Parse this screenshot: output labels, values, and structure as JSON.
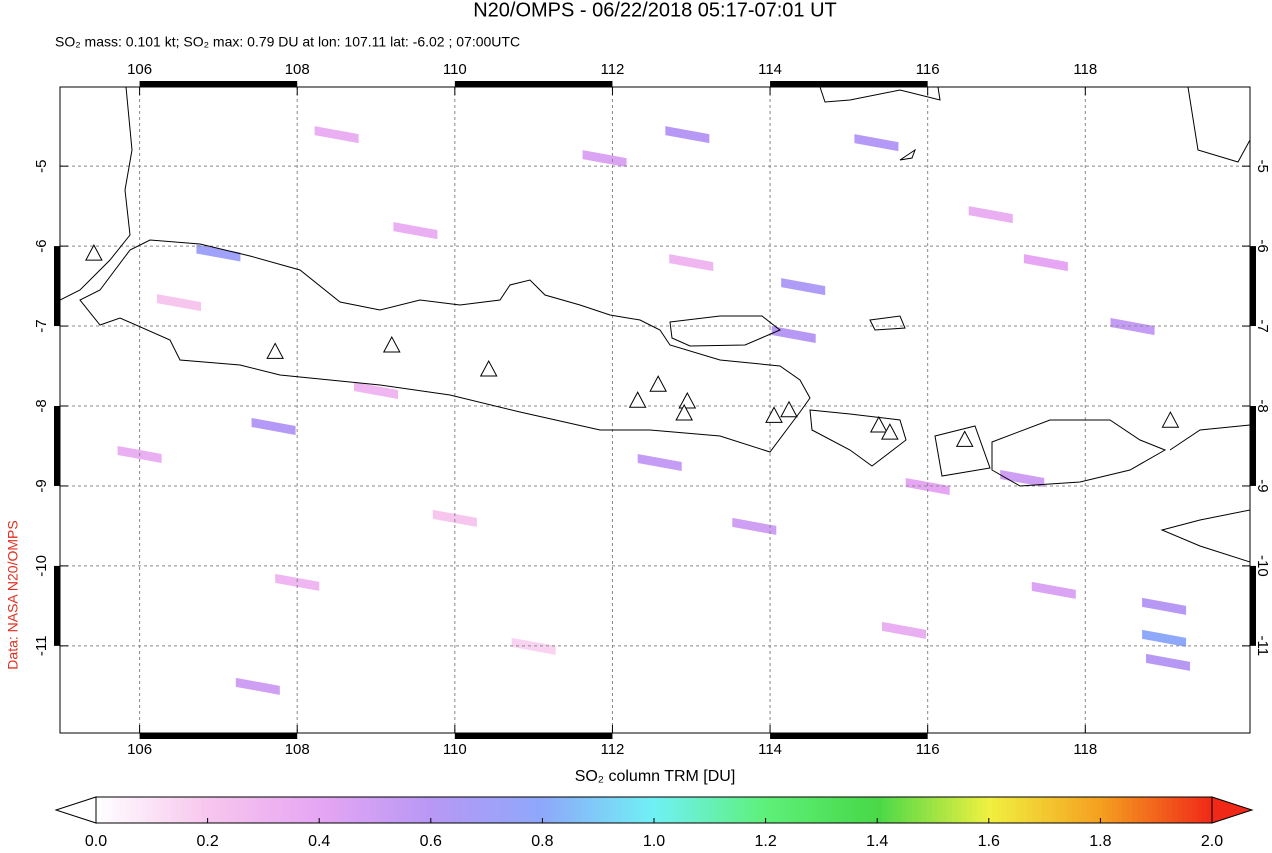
{
  "chart_data": {
    "type": "map",
    "title": "N20/OMPS - 06/22/2018 05:17-07:01 UT",
    "subtitle": "SO₂ mass: 0.101 kt; SO₂ max: 0.79 DU at lon: 107.11 lat: -6.02 ; 07:00UTC",
    "source": "Data: NASA N20/OMPS",
    "xlim": [
      104.99,
      120.09
    ],
    "ylim": [
      -12.09,
      -4.01
    ],
    "xticks": [
      106,
      108,
      110,
      112,
      114,
      116,
      118
    ],
    "yticks": [
      -5,
      -6,
      -7,
      -8,
      -9,
      -10,
      -11
    ],
    "grid": true,
    "pixels": {
      "lon": [
        107.0,
        114.42,
        107.7,
        112.6,
        115.35,
        119.0,
        119.0,
        119.05,
        112.95,
        111.9,
        108.5,
        109.5,
        114.3,
        107.5,
        113.8,
        116.0,
        117.6,
        118.6,
        106.0,
        110.0,
        106.5,
        109.0,
        113.0,
        116.8,
        117.5,
        115.7,
        108.0,
        111.0,
        117.2
      ],
      "lat": [
        -6.08,
        -6.5,
        -8.25,
        -8.7,
        -4.7,
        -10.5,
        -10.9,
        -11.2,
        -4.6,
        -4.9,
        -4.6,
        -5.8,
        -7.1,
        -11.5,
        -9.5,
        -9.0,
        -10.3,
        -7.0,
        -8.6,
        -9.4,
        -6.7,
        -7.8,
        -6.2,
        -5.6,
        -6.2,
        -10.8,
        -10.2,
        -11.0,
        -8.9
      ],
      "values": [
        0.72,
        0.65,
        0.62,
        0.55,
        0.62,
        0.6,
        0.8,
        0.6,
        0.6,
        0.45,
        0.35,
        0.35,
        0.6,
        0.5,
        0.5,
        0.4,
        0.45,
        0.55,
        0.35,
        0.2,
        0.2,
        0.3,
        0.3,
        0.35,
        0.4,
        0.35,
        0.3,
        0.15,
        0.5
      ]
    },
    "volcanoes": {
      "lon": [
        107.72,
        109.2,
        110.43,
        112.32,
        112.58,
        112.95,
        112.91,
        114.05,
        114.24,
        115.38,
        115.52,
        116.47,
        119.08,
        105.42
      ],
      "lat": [
        -7.33,
        -7.25,
        -7.55,
        -7.94,
        -7.74,
        -7.95,
        -8.1,
        -8.13,
        -8.06,
        -8.25,
        -8.34,
        -8.43,
        -8.19,
        -6.1
      ]
    },
    "colorbar": {
      "label": "SO₂ column TRM [DU]",
      "range": [
        0,
        2
      ],
      "ticks": [
        {
          "value": 0,
          "label": "0.0"
        },
        {
          "value": 0.2,
          "label": "0.2"
        },
        {
          "value": 0.4,
          "label": "0.4"
        },
        {
          "value": 0.6,
          "label": "0.6"
        },
        {
          "value": 0.8,
          "label": "0.8"
        },
        {
          "value": 1,
          "label": "1.0"
        },
        {
          "value": 1.2,
          "label": "1.2"
        },
        {
          "value": 1.4,
          "label": "1.4"
        },
        {
          "value": 1.6,
          "label": "1.6"
        },
        {
          "value": 1.8,
          "label": "1.8"
        },
        {
          "value": 2,
          "label": "2.0"
        }
      ],
      "colors": [
        "#ffffff",
        "#f7c6ee",
        "#e6a6f3",
        "#b898f5",
        "#8ea8fa",
        "#70f0f5",
        "#5ef07a",
        "#48d848",
        "#f0f040",
        "#f5a020",
        "#f02818"
      ]
    }
  }
}
